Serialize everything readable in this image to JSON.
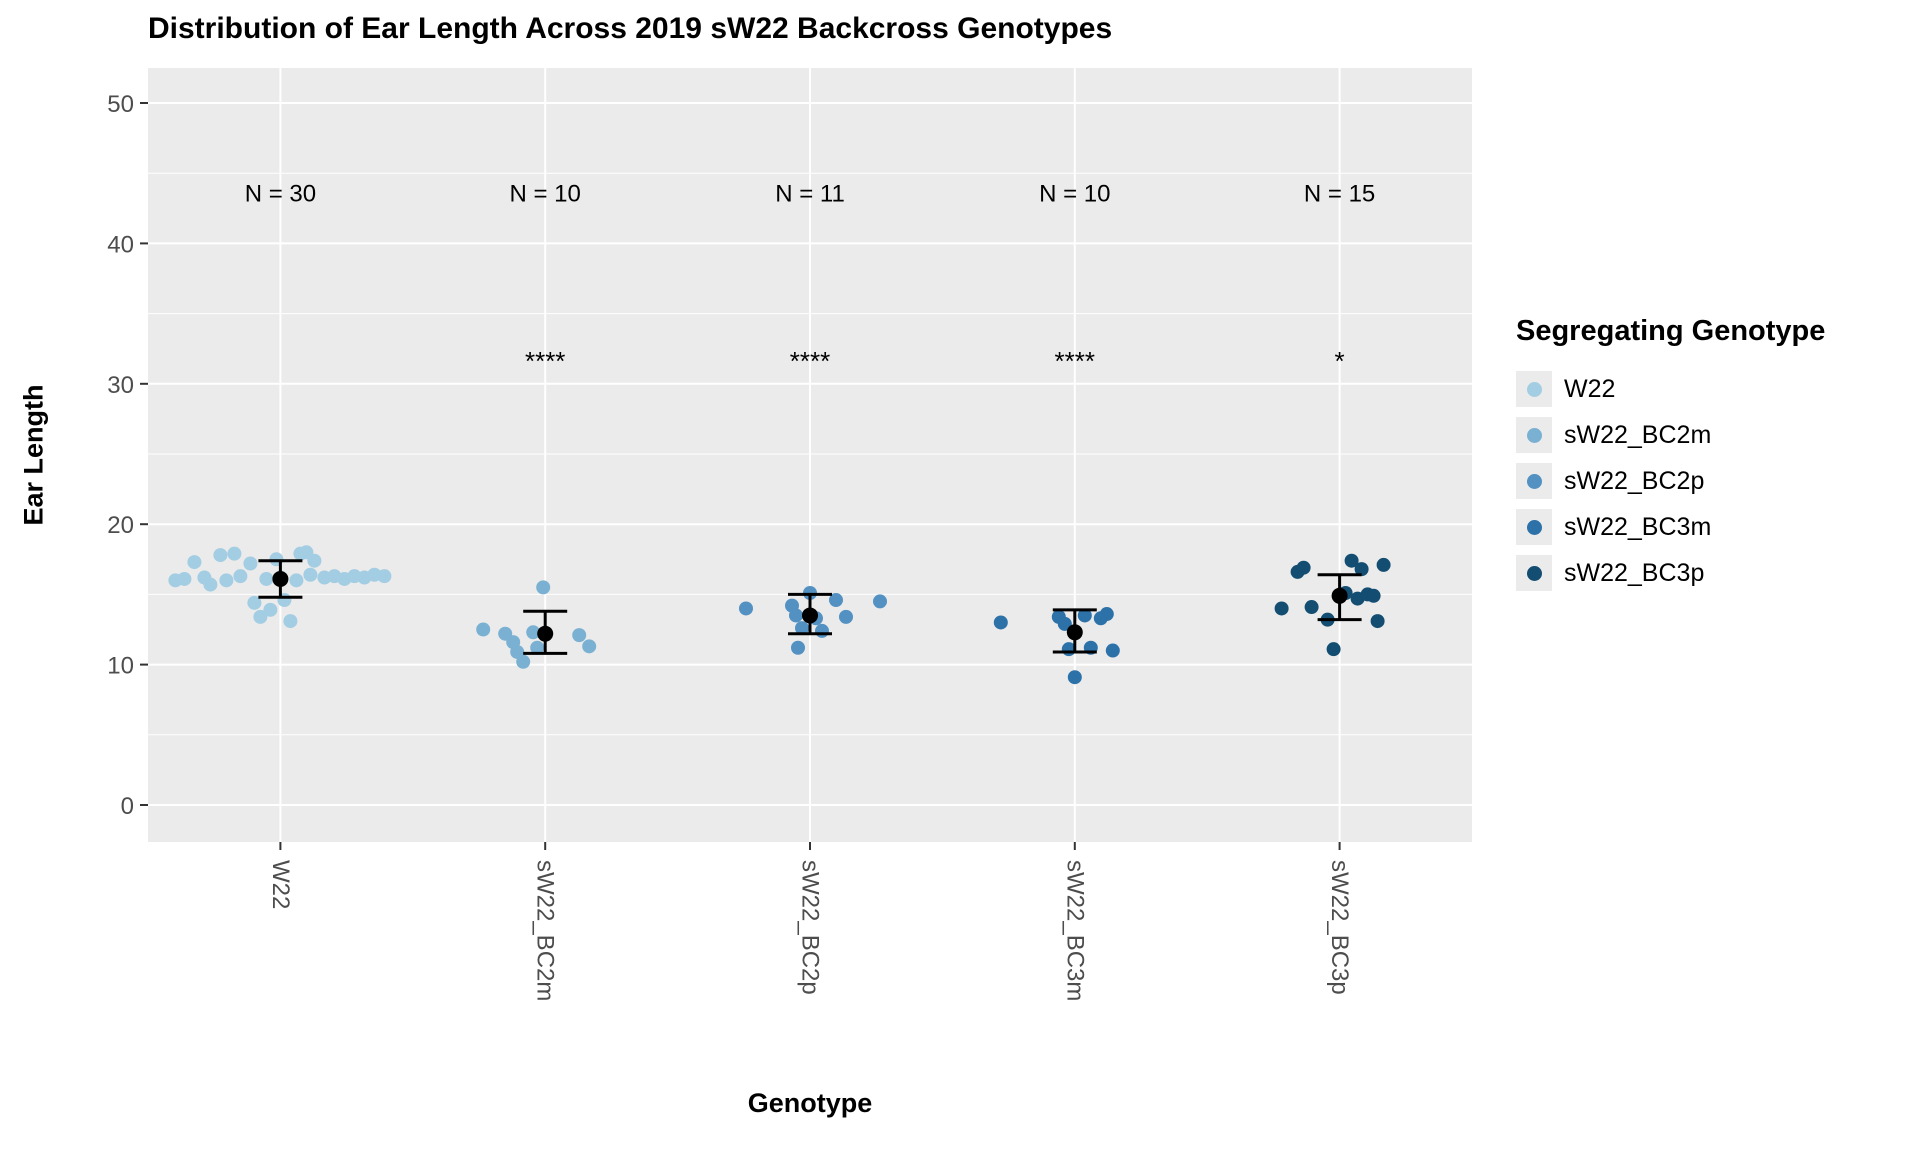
{
  "chart": {
    "title": "Distribution of Ear Length Across 2019 sW22 Backcross Genotypes",
    "xlabel": "Genotype",
    "ylabel": "Ear Length"
  },
  "legend": {
    "title": "Segregating Genotype",
    "items": [
      {
        "label": "W22",
        "color": "#A3CDE3"
      },
      {
        "label": "sW22_BC2m",
        "color": "#7AB1D3"
      },
      {
        "label": "sW22_BC2p",
        "color": "#5291C2"
      },
      {
        "label": "sW22_BC3m",
        "color": "#2D71A9"
      },
      {
        "label": "sW22_BC3p",
        "color": "#134D71"
      }
    ]
  },
  "chart_data": {
    "type": "scatter",
    "title": "Distribution of Ear Length Across 2019 sW22 Backcross Genotypes",
    "xlabel": "Genotype",
    "ylabel": "Ear Length",
    "categories": [
      "W22",
      "sW22_BC2m",
      "sW22_BC2p",
      "sW22_BC3m",
      "sW22_BC3p"
    ],
    "y_ticks": [
      0,
      10,
      20,
      30,
      40,
      50
    ],
    "y_minor": [
      5,
      15,
      25,
      35,
      45
    ],
    "ylim": [
      -2.5,
      52.5
    ],
    "panel_bg": "#EBEBEB",
    "grid_color": "#FFFFFF",
    "n_label_y": 43,
    "significance_y": 31,
    "groups": [
      {
        "name": "W22",
        "color": "#A3CDE3",
        "n": 30,
        "n_label": "N = 30",
        "significance": "",
        "mean": 16.1,
        "err_low": 14.8,
        "err_high": 17.4,
        "points": [
          [
            -105,
            16.0
          ],
          [
            -96,
            16.1
          ],
          [
            -86,
            17.3
          ],
          [
            -76,
            16.2
          ],
          [
            -70,
            15.7
          ],
          [
            -60,
            17.8
          ],
          [
            -54,
            16.0
          ],
          [
            -46,
            17.9
          ],
          [
            -40,
            16.3
          ],
          [
            -30,
            17.2
          ],
          [
            -26,
            14.4
          ],
          [
            -20,
            13.4
          ],
          [
            -14,
            16.1
          ],
          [
            -10,
            13.9
          ],
          [
            -4,
            17.5
          ],
          [
            0,
            16.2
          ],
          [
            4,
            14.6
          ],
          [
            10,
            13.1
          ],
          [
            16,
            16.0
          ],
          [
            20,
            17.9
          ],
          [
            26,
            18.0
          ],
          [
            30,
            16.4
          ],
          [
            34,
            17.4
          ],
          [
            44,
            16.2
          ],
          [
            54,
            16.3
          ],
          [
            64,
            16.1
          ],
          [
            74,
            16.3
          ],
          [
            84,
            16.2
          ],
          [
            94,
            16.4
          ],
          [
            104,
            16.3
          ]
        ]
      },
      {
        "name": "sW22_BC2m",
        "color": "#7AB1D3",
        "n": 10,
        "n_label": "N = 10",
        "significance": "****",
        "mean": 12.2,
        "err_low": 10.8,
        "err_high": 13.8,
        "points": [
          [
            -62,
            12.5
          ],
          [
            -40,
            12.2
          ],
          [
            -32,
            11.6
          ],
          [
            -28,
            10.9
          ],
          [
            -22,
            10.2
          ],
          [
            -12,
            12.3
          ],
          [
            -8,
            11.2
          ],
          [
            -2,
            15.5
          ],
          [
            34,
            12.1
          ],
          [
            44,
            11.3
          ]
        ]
      },
      {
        "name": "sW22_BC2p",
        "color": "#5291C2",
        "n": 11,
        "n_label": "N = 11",
        "significance": "****",
        "mean": 13.5,
        "err_low": 12.2,
        "err_high": 15.0,
        "points": [
          [
            -64,
            14.0
          ],
          [
            -18,
            14.2
          ],
          [
            -14,
            13.5
          ],
          [
            -12,
            11.2
          ],
          [
            -8,
            12.6
          ],
          [
            0,
            15.1
          ],
          [
            6,
            13.3
          ],
          [
            12,
            12.4
          ],
          [
            26,
            14.6
          ],
          [
            36,
            13.4
          ],
          [
            70,
            14.5
          ]
        ]
      },
      {
        "name": "sW22_BC3m",
        "color": "#2D71A9",
        "n": 10,
        "n_label": "N = 10",
        "significance": "****",
        "mean": 12.3,
        "err_low": 10.9,
        "err_high": 13.9,
        "points": [
          [
            -74,
            13.0
          ],
          [
            -16,
            13.4
          ],
          [
            -10,
            12.9
          ],
          [
            -6,
            11.1
          ],
          [
            0,
            9.1
          ],
          [
            10,
            13.5
          ],
          [
            16,
            11.2
          ],
          [
            26,
            13.3
          ],
          [
            32,
            13.6
          ],
          [
            38,
            11.0
          ]
        ]
      },
      {
        "name": "sW22_BC3p",
        "color": "#134D71",
        "n": 15,
        "n_label": "N = 15",
        "significance": "*",
        "mean": 14.9,
        "err_low": 13.2,
        "err_high": 16.4,
        "points": [
          [
            -58,
            14.0
          ],
          [
            -42,
            16.6
          ],
          [
            -36,
            16.9
          ],
          [
            -28,
            14.1
          ],
          [
            -12,
            13.2
          ],
          [
            -6,
            11.1
          ],
          [
            0,
            14.9
          ],
          [
            6,
            15.1
          ],
          [
            12,
            17.4
          ],
          [
            18,
            14.7
          ],
          [
            22,
            16.8
          ],
          [
            28,
            15.0
          ],
          [
            34,
            14.9
          ],
          [
            38,
            13.1
          ],
          [
            44,
            17.1
          ]
        ]
      }
    ]
  }
}
